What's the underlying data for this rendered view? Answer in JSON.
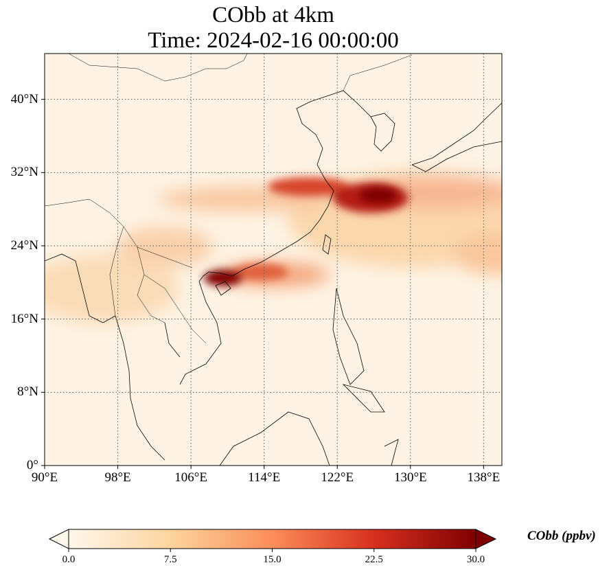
{
  "map": {
    "title_line_1": "CObb at 4km",
    "title_line_2": "Time: 2024-02-16 00:00:00",
    "lon_range": [
      90,
      140
    ],
    "lat_range": [
      0,
      45
    ],
    "lon_ticks": [
      {
        "value": 90,
        "label": "90°E"
      },
      {
        "value": 98,
        "label": "98°E"
      },
      {
        "value": 106,
        "label": "106°E"
      },
      {
        "value": 114,
        "label": "114°E"
      },
      {
        "value": 122,
        "label": "122°E"
      },
      {
        "value": 130,
        "label": "130°E"
      },
      {
        "value": 138,
        "label": "138°E"
      }
    ],
    "lat_ticks": [
      {
        "value": 0,
        "label": "0°"
      },
      {
        "value": 8,
        "label": "8°N"
      },
      {
        "value": 16,
        "label": "16°N"
      },
      {
        "value": 24,
        "label": "24°N"
      },
      {
        "value": 32,
        "label": "32°N"
      },
      {
        "value": 40,
        "label": "40°N"
      }
    ],
    "gridlines": true,
    "colormap": "OrRd",
    "plume_maxima": [
      {
        "lon": 126.5,
        "lat": 29.5,
        "level": "max"
      },
      {
        "lon": 109.5,
        "lat": 20.5,
        "level": "max"
      }
    ]
  },
  "colorbar": {
    "label": "CObb (ppbv)",
    "ticks": [
      "0.0",
      "7.5",
      "15.0",
      "22.5",
      "30.0"
    ],
    "min": 0,
    "max": 30,
    "colors": [
      "#fff7ec",
      "#fdd49e",
      "#fc8d59",
      "#d7301f",
      "#7f0000"
    ]
  }
}
